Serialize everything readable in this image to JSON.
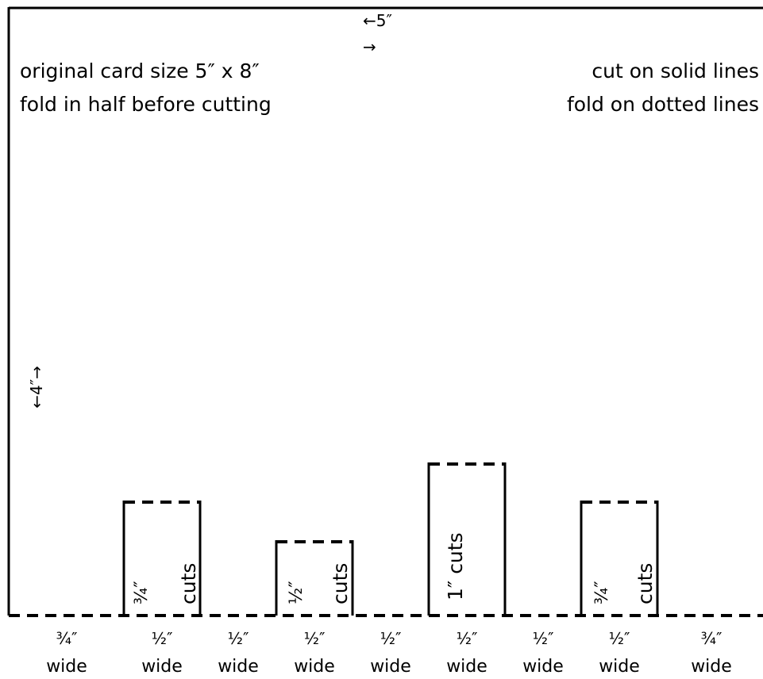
{
  "top_dimension_label": "←5″",
  "top_dimension_arrow": "→",
  "side_dimension_label": "←4″→",
  "instructions_left": {
    "line1": "original card size 5″ x 8″",
    "line2": "fold in half before cutting"
  },
  "instructions_right": {
    "line1": "cut on solid lines",
    "line2": "fold on dotted lines"
  },
  "cut_labels": [
    {
      "size": "¾″",
      "word": "cuts"
    },
    {
      "size": "½″",
      "word": "cuts"
    },
    {
      "text": "1″ cuts"
    },
    {
      "size": "¾″",
      "word": "cuts"
    }
  ],
  "segments": [
    {
      "width": "¾″",
      "word": "wide"
    },
    {
      "width": "½″",
      "word": "wide"
    },
    {
      "width": "½″",
      "word": "wide"
    },
    {
      "width": "½″",
      "word": "wide"
    },
    {
      "width": "½″",
      "word": "wide"
    },
    {
      "width": "½″",
      "word": "wide"
    },
    {
      "width": "½″",
      "word": "wide"
    },
    {
      "width": "½″",
      "word": "wide"
    },
    {
      "width": "¾″",
      "word": "wide"
    }
  ]
}
